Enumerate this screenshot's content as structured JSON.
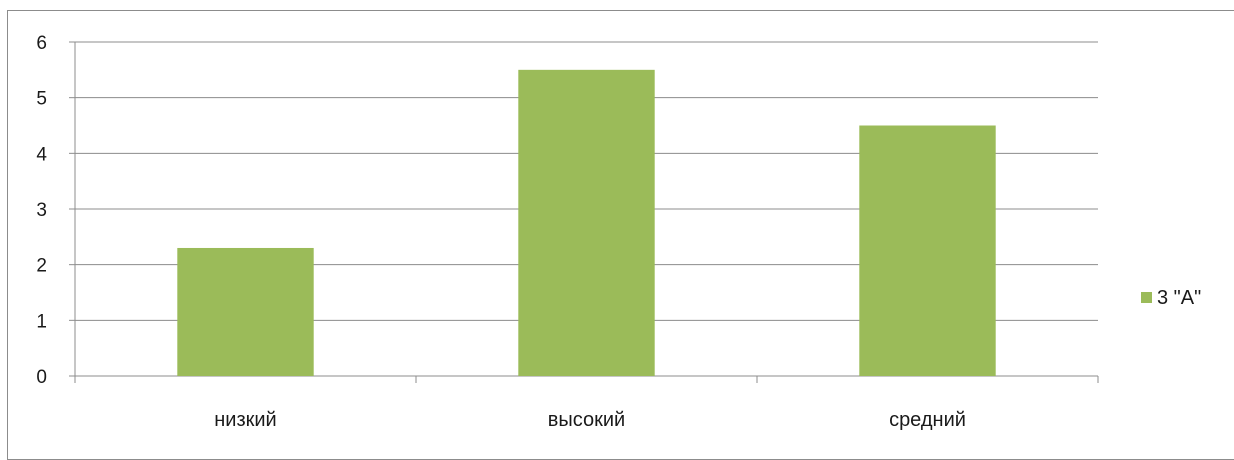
{
  "chart_data": {
    "type": "bar",
    "categories": [
      "низкий",
      "высокий",
      "средний"
    ],
    "series": [
      {
        "name": "3 \"А\"",
        "values": [
          2.3,
          5.5,
          4.5
        ],
        "color": "#9bbb59"
      }
    ],
    "ylim": [
      0,
      6
    ],
    "yticks": [
      0,
      1,
      2,
      3,
      4,
      5,
      6
    ],
    "grid": true,
    "legend_position": "right",
    "title": "",
    "xlabel": "",
    "ylabel": ""
  }
}
